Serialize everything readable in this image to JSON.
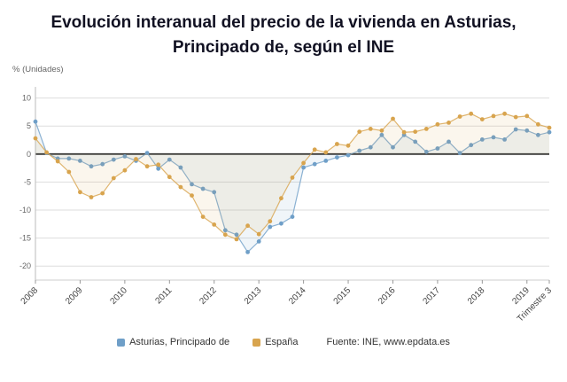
{
  "header": {
    "title_line1": "Evolución interanual del precio de la vivienda en Asturias,",
    "title_line2": "Principado de, según el INE"
  },
  "chart": {
    "y_axis_label": "% (Unidades)"
  },
  "chart_data": {
    "type": "line",
    "title": "Evolución interanual del precio de la vivienda en Asturias, Principado de, según el INE",
    "xlabel": "Trimestre",
    "ylabel": "% (Unidades)",
    "ylim": [
      -22.5,
      12
    ],
    "yticks": [
      10,
      5,
      0,
      -5,
      -10,
      -15,
      -20
    ],
    "grid": true,
    "legend_position": "bottom",
    "x_ticks": [
      {
        "index": 0,
        "label": "2008"
      },
      {
        "index": 4,
        "label": "2009"
      },
      {
        "index": 8,
        "label": "2010"
      },
      {
        "index": 12,
        "label": "2011"
      },
      {
        "index": 16,
        "label": "2012"
      },
      {
        "index": 20,
        "label": "2013"
      },
      {
        "index": 24,
        "label": "2014"
      },
      {
        "index": 28,
        "label": "2015"
      },
      {
        "index": 32,
        "label": "2016"
      },
      {
        "index": 36,
        "label": "2017"
      },
      {
        "index": 40,
        "label": "2018"
      },
      {
        "index": 44,
        "label": "2019"
      },
      {
        "index": 46,
        "label": "Trimestre 3"
      }
    ],
    "series": [
      {
        "name": "Asturias, Principado de",
        "color": "#6f9fc8",
        "values": [
          5.8,
          0.2,
          -0.8,
          -0.8,
          -1.2,
          -2.2,
          -1.8,
          -1.0,
          -0.4,
          -1.2,
          0.2,
          -2.6,
          -1.0,
          -2.4,
          -5.4,
          -6.2,
          -6.8,
          -13.6,
          -14.4,
          -17.5,
          -15.6,
          -13.0,
          -12.4,
          -11.2,
          -2.4,
          -1.8,
          -1.2,
          -0.6,
          -0.2,
          0.6,
          1.2,
          3.4,
          1.2,
          3.4,
          2.2,
          0.4,
          1.0,
          2.2,
          0.2,
          1.6,
          2.6,
          3.0,
          2.6,
          4.4,
          4.2,
          3.4,
          3.9
        ]
      },
      {
        "name": "España",
        "color": "#d8a44e",
        "values": [
          2.8,
          0.3,
          -1.3,
          -3.2,
          -6.8,
          -7.7,
          -7.0,
          -4.3,
          -2.9,
          -0.9,
          -2.2,
          -1.9,
          -4.1,
          -5.9,
          -7.4,
          -11.2,
          -12.6,
          -14.4,
          -15.2,
          -12.8,
          -14.3,
          -12.0,
          -7.9,
          -4.2,
          -1.6,
          0.8,
          0.3,
          1.8,
          1.5,
          4.0,
          4.5,
          4.2,
          6.3,
          3.9,
          4.0,
          4.5,
          5.3,
          5.6,
          6.7,
          7.2,
          6.2,
          6.8,
          7.2,
          6.6,
          6.8,
          5.3,
          4.7
        ]
      }
    ]
  },
  "legend": {
    "items": [
      {
        "label": "Asturias, Principado de",
        "color": "#6f9fc8"
      },
      {
        "label": "España",
        "color": "#d8a44e"
      }
    ]
  },
  "footer": {
    "source": "Fuente: INE, www.epdata.es"
  }
}
